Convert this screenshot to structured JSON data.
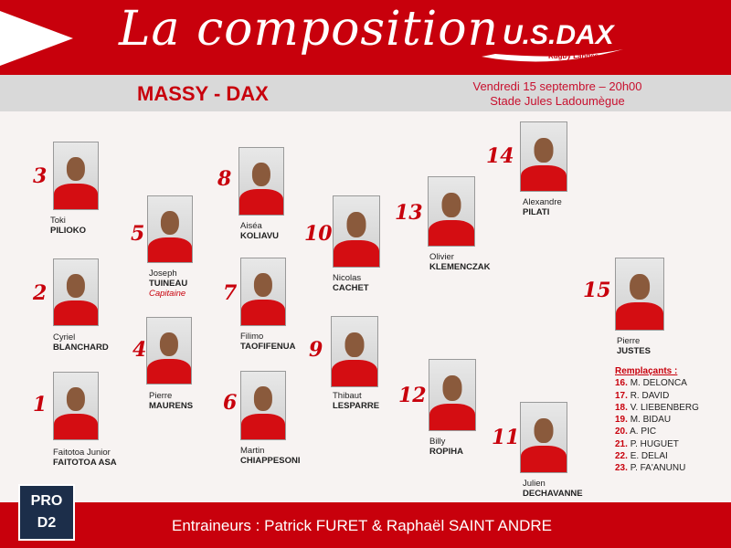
{
  "header": {
    "title": "La composition",
    "logo_text": "U.S.DAX",
    "logo_sub": "Rugby Landes",
    "play_icon": "play-triangle-icon"
  },
  "match": {
    "teams": "MASSY - DAX",
    "date": "Vendredi 15 septembre – 20h00",
    "venue": "Stade Jules Ladoumègue"
  },
  "players": [
    {
      "number": "3",
      "first": "Toki",
      "last": "PILIOKO"
    },
    {
      "number": "2",
      "first": "Cyriel",
      "last": "BLANCHARD"
    },
    {
      "number": "1",
      "first": "Faitotoa Junior",
      "last": "FAITOTOA ASA"
    },
    {
      "number": "5",
      "first": "Joseph",
      "last": "TUINEAU",
      "note": "Capitaine"
    },
    {
      "number": "4",
      "first": "Pierre",
      "last": "MAURENS"
    },
    {
      "number": "8",
      "first": "Aiséa",
      "last": "KOLIAVU"
    },
    {
      "number": "7",
      "first": "Filimo",
      "last": "TAOFIFENUA"
    },
    {
      "number": "6",
      "first": "Martin",
      "last": "CHIAPPESONI"
    },
    {
      "number": "10",
      "first": "Nicolas",
      "last": "CACHET"
    },
    {
      "number": "9",
      "first": "Thibaut",
      "last": "LESPARRE"
    },
    {
      "number": "13",
      "first": "Olivier",
      "last": "KLEMENCZAK"
    },
    {
      "number": "12",
      "first": "Billy",
      "last": "ROPIHA"
    },
    {
      "number": "14",
      "first": "Alexandre",
      "last": "PILATI"
    },
    {
      "number": "11",
      "first": "Julien",
      "last": "DECHAVANNE"
    },
    {
      "number": "15",
      "first": "Pierre",
      "last": "JUSTES"
    }
  ],
  "substitutes": {
    "heading": "Remplaçants :",
    "items": [
      {
        "number": "16.",
        "name": "M. DELONCA"
      },
      {
        "number": "17.",
        "name": "R. DAVID"
      },
      {
        "number": "18.",
        "name": "V. LIEBENBERG"
      },
      {
        "number": "19.",
        "name": "M. BIDAU"
      },
      {
        "number": "20.",
        "name": "A. PIC"
      },
      {
        "number": "21.",
        "name": "P. HUGUET"
      },
      {
        "number": "22.",
        "name": "E. DELAI"
      },
      {
        "number": "23.",
        "name": "P. FA'ANUNU"
      }
    ]
  },
  "footer": {
    "coaches": "Entraineurs : Patrick FURET & Raphaël SAINT ANDRE",
    "league_logo": "PRO D2"
  },
  "colors": {
    "brand_red": "#c8000c",
    "band_gray": "#d9d9d9"
  }
}
